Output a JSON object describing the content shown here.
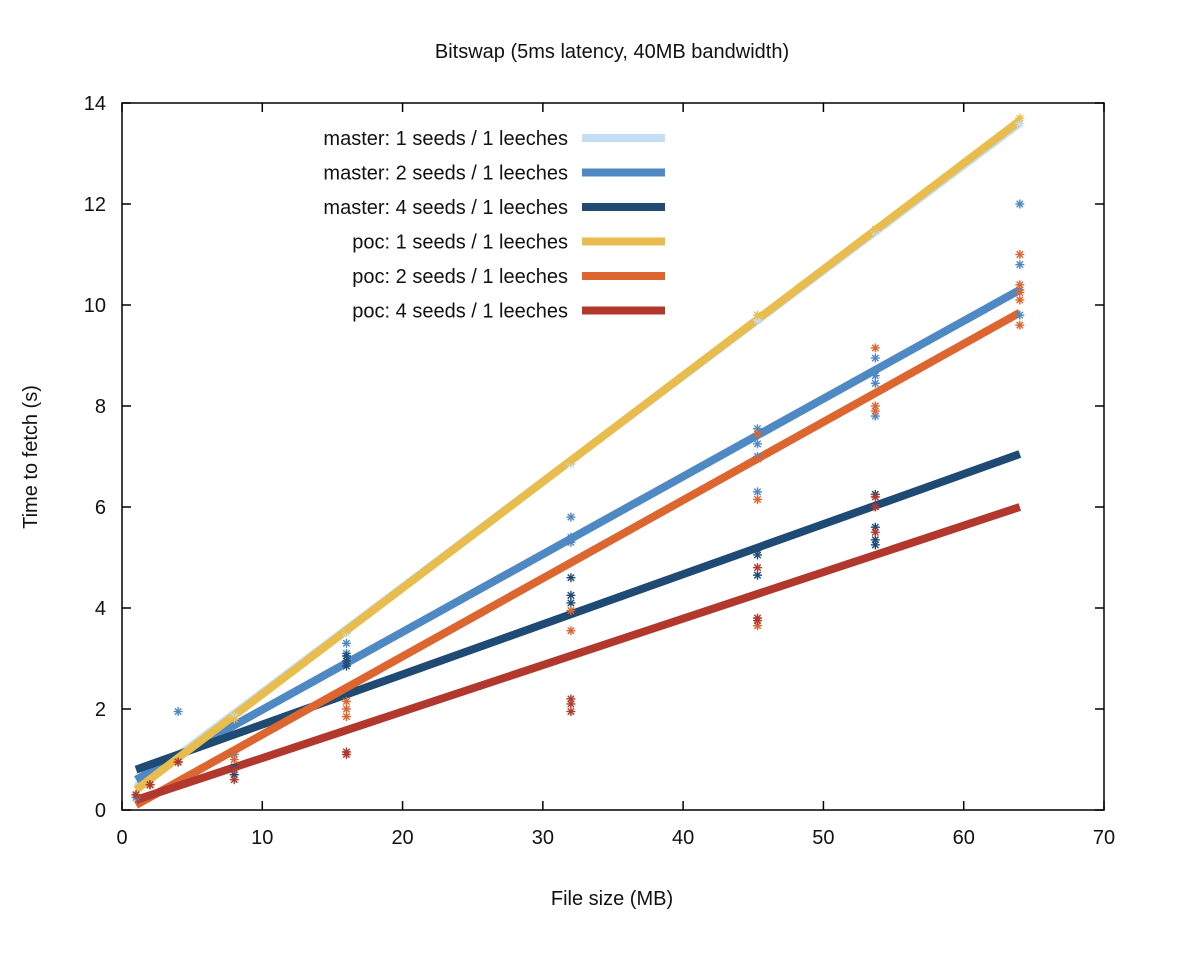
{
  "chart_data": {
    "type": "scatter",
    "title": "Bitswap (5ms latency, 40MB bandwidth)",
    "xlabel": "File size (MB)",
    "ylabel": "Time to fetch (s)",
    "xlim": [
      0,
      70
    ],
    "ylim": [
      0,
      14
    ],
    "xticks": [
      0,
      10,
      20,
      30,
      40,
      50,
      60,
      70
    ],
    "yticks": [
      0,
      2,
      4,
      6,
      8,
      10,
      12,
      14
    ],
    "grid": false,
    "legend_position": "top-left",
    "series": [
      {
        "name": "master: 1 seeds / 1 leeches",
        "color": "#c5def5",
        "fit": [
          [
            1,
            0.45
          ],
          [
            64,
            13.6
          ]
        ],
        "points": [
          [
            1,
            0.3
          ],
          [
            2,
            0.5
          ],
          [
            4,
            0.95
          ],
          [
            8,
            1.85
          ],
          [
            16,
            3.5
          ],
          [
            32,
            6.85
          ],
          [
            45.3,
            9.7
          ],
          [
            53.7,
            11.45
          ],
          [
            64,
            13.6
          ]
        ]
      },
      {
        "name": "master: 2 seeds / 1 leeches",
        "color": "#4e89c4",
        "fit": [
          [
            1,
            0.6
          ],
          [
            64,
            10.3
          ]
        ],
        "points": [
          [
            1,
            0.25
          ],
          [
            2,
            0.5
          ],
          [
            4,
            1.95
          ],
          [
            8,
            1.1
          ],
          [
            8,
            0.7
          ],
          [
            16,
            3.3
          ],
          [
            16,
            3.1
          ],
          [
            16,
            2.9
          ],
          [
            32,
            5.8
          ],
          [
            32,
            5.4
          ],
          [
            32,
            5.3
          ],
          [
            45.3,
            7.55
          ],
          [
            45.3,
            7.25
          ],
          [
            45.3,
            7.0
          ],
          [
            45.3,
            6.3
          ],
          [
            53.7,
            8.95
          ],
          [
            53.7,
            8.6
          ],
          [
            53.7,
            8.45
          ],
          [
            53.7,
            7.8
          ],
          [
            64,
            12.0
          ],
          [
            64,
            10.8
          ],
          [
            64,
            10.3
          ],
          [
            64,
            9.8
          ]
        ]
      },
      {
        "name": "master: 4 seeds / 1 leeches",
        "color": "#1f4a74",
        "fit": [
          [
            1,
            0.8
          ],
          [
            64,
            7.05
          ]
        ],
        "points": [
          [
            1,
            0.3
          ],
          [
            2,
            0.5
          ],
          [
            4,
            0.95
          ],
          [
            8,
            0.85
          ],
          [
            8,
            0.7
          ],
          [
            16,
            3.05
          ],
          [
            16,
            2.95
          ],
          [
            16,
            2.85
          ],
          [
            32,
            4.6
          ],
          [
            32,
            4.25
          ],
          [
            32,
            4.1
          ],
          [
            45.3,
            5.15
          ],
          [
            45.3,
            5.05
          ],
          [
            45.3,
            4.65
          ],
          [
            53.7,
            6.25
          ],
          [
            53.7,
            5.6
          ],
          [
            53.7,
            5.35
          ],
          [
            53.7,
            5.25
          ]
        ]
      },
      {
        "name": "poc: 1 seeds / 1 leeches",
        "color": "#e8bd4d",
        "fit": [
          [
            1,
            0.4
          ],
          [
            64,
            13.65
          ]
        ],
        "points": [
          [
            1,
            0.3
          ],
          [
            2,
            0.5
          ],
          [
            4,
            0.95
          ],
          [
            8,
            1.8
          ],
          [
            16,
            3.55
          ],
          [
            32,
            6.9
          ],
          [
            45.3,
            9.8
          ],
          [
            53.7,
            11.5
          ],
          [
            64,
            13.7
          ]
        ]
      },
      {
        "name": "poc: 2 seeds / 1 leeches",
        "color": "#dc6530",
        "fit": [
          [
            1,
            0.1
          ],
          [
            64,
            9.85
          ]
        ],
        "points": [
          [
            1,
            0.3
          ],
          [
            2,
            0.5
          ],
          [
            4,
            0.95
          ],
          [
            8,
            1.15
          ],
          [
            8,
            1.0
          ],
          [
            16,
            2.15
          ],
          [
            16,
            2.0
          ],
          [
            16,
            1.85
          ],
          [
            32,
            3.95
          ],
          [
            32,
            3.55
          ],
          [
            45.3,
            7.45
          ],
          [
            45.3,
            6.95
          ],
          [
            45.3,
            6.15
          ],
          [
            45.3,
            3.65
          ],
          [
            53.7,
            9.15
          ],
          [
            53.7,
            8.0
          ],
          [
            53.7,
            7.9
          ],
          [
            64,
            11.0
          ],
          [
            64,
            10.4
          ],
          [
            64,
            10.25
          ],
          [
            64,
            10.1
          ],
          [
            64,
            9.6
          ]
        ]
      },
      {
        "name": "poc: 4 seeds / 1 leeches",
        "color": "#b2382e",
        "fit": [
          [
            1,
            0.2
          ],
          [
            64,
            6.0
          ]
        ],
        "points": [
          [
            1,
            0.3
          ],
          [
            2,
            0.5
          ],
          [
            4,
            0.95
          ],
          [
            8,
            0.8
          ],
          [
            8,
            0.6
          ],
          [
            16,
            1.15
          ],
          [
            16,
            1.1
          ],
          [
            32,
            2.2
          ],
          [
            32,
            2.1
          ],
          [
            32,
            1.95
          ],
          [
            45.3,
            4.8
          ],
          [
            45.3,
            3.8
          ],
          [
            45.3,
            3.75
          ],
          [
            53.7,
            6.2
          ],
          [
            53.7,
            6.0
          ],
          [
            53.7,
            5.5
          ]
        ]
      }
    ]
  }
}
